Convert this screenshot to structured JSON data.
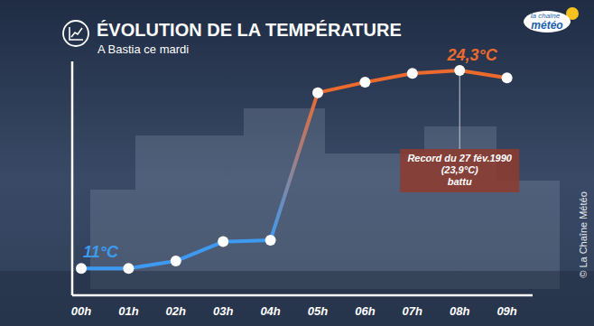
{
  "chart_data": {
    "type": "line",
    "title": "ÉVOLUTION DE LA TEMPÉRATURE",
    "subtitle": "A Bastia ce mardi",
    "categories": [
      "00h",
      "01h",
      "02h",
      "03h",
      "04h",
      "05h",
      "06h",
      "07h",
      "08h",
      "09h"
    ],
    "values": [
      11,
      11,
      11.5,
      12.8,
      12.9,
      22.8,
      23.5,
      24.1,
      24.3,
      23.8
    ],
    "value_labels": [
      "11°C",
      null,
      null,
      null,
      null,
      null,
      null,
      null,
      "24,3°C",
      null
    ],
    "data_labels": true,
    "colors": [
      "#3d9af0",
      "#3d9af0",
      "#3d9af0",
      "#3d9af0",
      "#3d9af0",
      "#ec6a2e",
      "#ec6a2e",
      "#ec6a2e",
      "#ec6a2e",
      "#ec6a2e"
    ],
    "marker": "circle",
    "ylim": [
      9.2,
      24.9
    ],
    "tick_labels": "x",
    "grid": false,
    "annotation": [
      "Record du 27 fév.1990",
      "(23,9°C)",
      "battu"
    ],
    "logo": [
      "la chaîne",
      "météo"
    ],
    "credit": "© La Chaîne Météo"
  }
}
